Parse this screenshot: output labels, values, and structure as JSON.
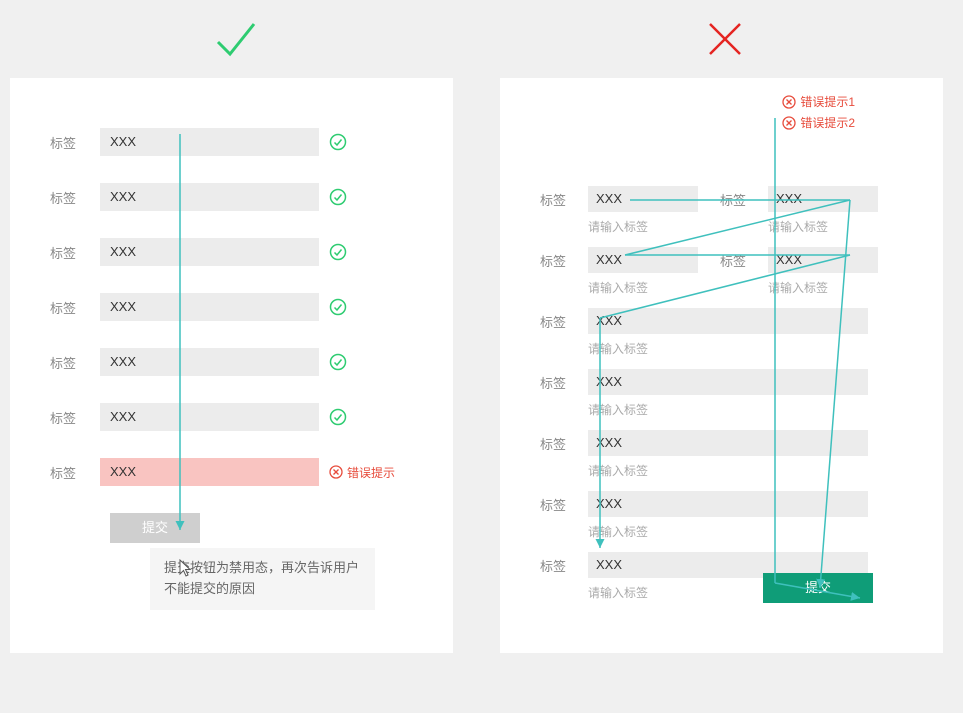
{
  "colors": {
    "page_bg": "#f0f0f0",
    "panel_bg": "#ffffff",
    "input_bg": "#ececec",
    "input_error_bg": "#f9c4c1",
    "text_muted": "#888888",
    "text_value": "#333333",
    "hint": "#aaaaaa",
    "ok": "#2ecc71",
    "error": "#e74c3c",
    "submit_disabled_bg": "#cfcfcf",
    "submit_active_bg": "#0f9d78",
    "flow_line": "#3fc0bd"
  },
  "icons": {
    "check_stroke": "#2ecc71",
    "cross_stroke": "#e52421"
  },
  "left": {
    "rows": [
      {
        "label": "标签",
        "value": "XXX",
        "state": "ok"
      },
      {
        "label": "标签",
        "value": "XXX",
        "state": "ok"
      },
      {
        "label": "标签",
        "value": "XXX",
        "state": "ok"
      },
      {
        "label": "标签",
        "value": "XXX",
        "state": "ok"
      },
      {
        "label": "标签",
        "value": "XXX",
        "state": "ok"
      },
      {
        "label": "标签",
        "value": "XXX",
        "state": "ok"
      },
      {
        "label": "标签",
        "value": "XXX",
        "state": "error",
        "error_text": "错误提示"
      }
    ],
    "submit_label": "提交",
    "tooltip_text": "提交按钮为禁用态，再次告诉用户不能提交的原因"
  },
  "right": {
    "top_errors": [
      "错误提示1",
      "错误提示2"
    ],
    "two_col_rows": [
      {
        "a": {
          "label": "标签",
          "value": "XXX",
          "hint": "请输入标签"
        },
        "b": {
          "label": "标签",
          "value": "XXX",
          "hint": "请输入标签"
        }
      },
      {
        "a": {
          "label": "标签",
          "value": "XXX",
          "hint": "请输入标签"
        },
        "b": {
          "label": "标签",
          "value": "XXX",
          "hint": "请输入标签"
        }
      }
    ],
    "full_rows": [
      {
        "label": "标签",
        "value": "XXX",
        "hint": "请输入标签"
      },
      {
        "label": "标签",
        "value": "XXX",
        "hint": "请输入标签"
      },
      {
        "label": "标签",
        "value": "XXX",
        "hint": "请输入标签"
      },
      {
        "label": "标签",
        "value": "XXX",
        "hint": "请输入标签"
      },
      {
        "label": "标签",
        "value": "XXX",
        "hint": "请输入标签"
      }
    ],
    "submit_label": "提交"
  }
}
